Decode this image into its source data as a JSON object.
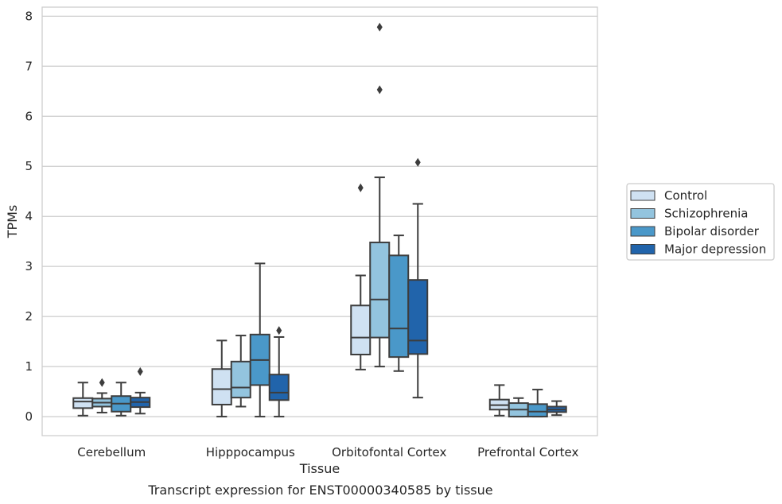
{
  "chart_data": {
    "type": "boxplot",
    "title": "",
    "caption": "Transcript expression for ENST00000340585 by tissue",
    "xlabel": "Tissue",
    "ylabel": "TPMs",
    "ylim": [
      -0.38,
      8.18
    ],
    "yticks": [
      0,
      1,
      2,
      3,
      4,
      5,
      6,
      7,
      8
    ],
    "grid": "horizontal",
    "legend_position": "right",
    "categories": [
      "Cerebellum",
      "Hipppocampus",
      "Orbitofontal Cortex",
      "Prefrontal Cortex"
    ],
    "series": [
      {
        "name": "Control",
        "color": "#cfe1f2",
        "boxes": [
          {
            "whisker_low": 0.02,
            "q1": 0.17,
            "median": 0.3,
            "q3": 0.37,
            "whisker_high": 0.68,
            "outliers": []
          },
          {
            "whisker_low": 0.0,
            "q1": 0.24,
            "median": 0.55,
            "q3": 0.95,
            "whisker_high": 1.52,
            "outliers": []
          },
          {
            "whisker_low": 0.94,
            "q1": 1.24,
            "median": 1.58,
            "q3": 2.22,
            "whisker_high": 2.82,
            "outliers": [
              4.57
            ]
          },
          {
            "whisker_low": 0.02,
            "q1": 0.14,
            "median": 0.23,
            "q3": 0.34,
            "whisker_high": 0.63,
            "outliers": []
          }
        ]
      },
      {
        "name": "Schizophrenia",
        "color": "#93c4de",
        "boxes": [
          {
            "whisker_low": 0.08,
            "q1": 0.2,
            "median": 0.28,
            "q3": 0.36,
            "whisker_high": 0.47,
            "outliers": [
              0.68
            ]
          },
          {
            "whisker_low": 0.2,
            "q1": 0.38,
            "median": 0.58,
            "q3": 1.1,
            "whisker_high": 1.62,
            "outliers": []
          },
          {
            "whisker_low": 1.0,
            "q1": 1.58,
            "median": 2.34,
            "q3": 3.48,
            "whisker_high": 4.78,
            "outliers": [
              6.53,
              7.78
            ]
          },
          {
            "whisker_low": 0.0,
            "q1": 0.0,
            "median": 0.14,
            "q3": 0.27,
            "whisker_high": 0.37,
            "outliers": []
          }
        ]
      },
      {
        "name": "Bipolar disorder",
        "color": "#4a98c9",
        "boxes": [
          {
            "whisker_low": 0.02,
            "q1": 0.1,
            "median": 0.26,
            "q3": 0.41,
            "whisker_high": 0.68,
            "outliers": []
          },
          {
            "whisker_low": 0.0,
            "q1": 0.63,
            "median": 1.13,
            "q3": 1.64,
            "whisker_high": 3.06,
            "outliers": []
          },
          {
            "whisker_low": 0.91,
            "q1": 1.19,
            "median": 1.76,
            "q3": 3.22,
            "whisker_high": 3.62,
            "outliers": []
          },
          {
            "whisker_low": 0.0,
            "q1": 0.0,
            "median": 0.1,
            "q3": 0.25,
            "whisker_high": 0.54,
            "outliers": []
          }
        ]
      },
      {
        "name": "Major depression",
        "color": "#2164ab",
        "boxes": [
          {
            "whisker_low": 0.06,
            "q1": 0.19,
            "median": 0.29,
            "q3": 0.38,
            "whisker_high": 0.48,
            "outliers": [
              0.9
            ]
          },
          {
            "whisker_low": 0.0,
            "q1": 0.33,
            "median": 0.48,
            "q3": 0.84,
            "whisker_high": 1.59,
            "outliers": [
              1.72
            ]
          },
          {
            "whisker_low": 0.38,
            "q1": 1.25,
            "median": 1.52,
            "q3": 2.73,
            "whisker_high": 4.25,
            "outliers": [
              5.08
            ]
          },
          {
            "whisker_low": 0.03,
            "q1": 0.09,
            "median": 0.14,
            "q3": 0.2,
            "whisker_high": 0.31,
            "outliers": []
          }
        ]
      }
    ]
  }
}
